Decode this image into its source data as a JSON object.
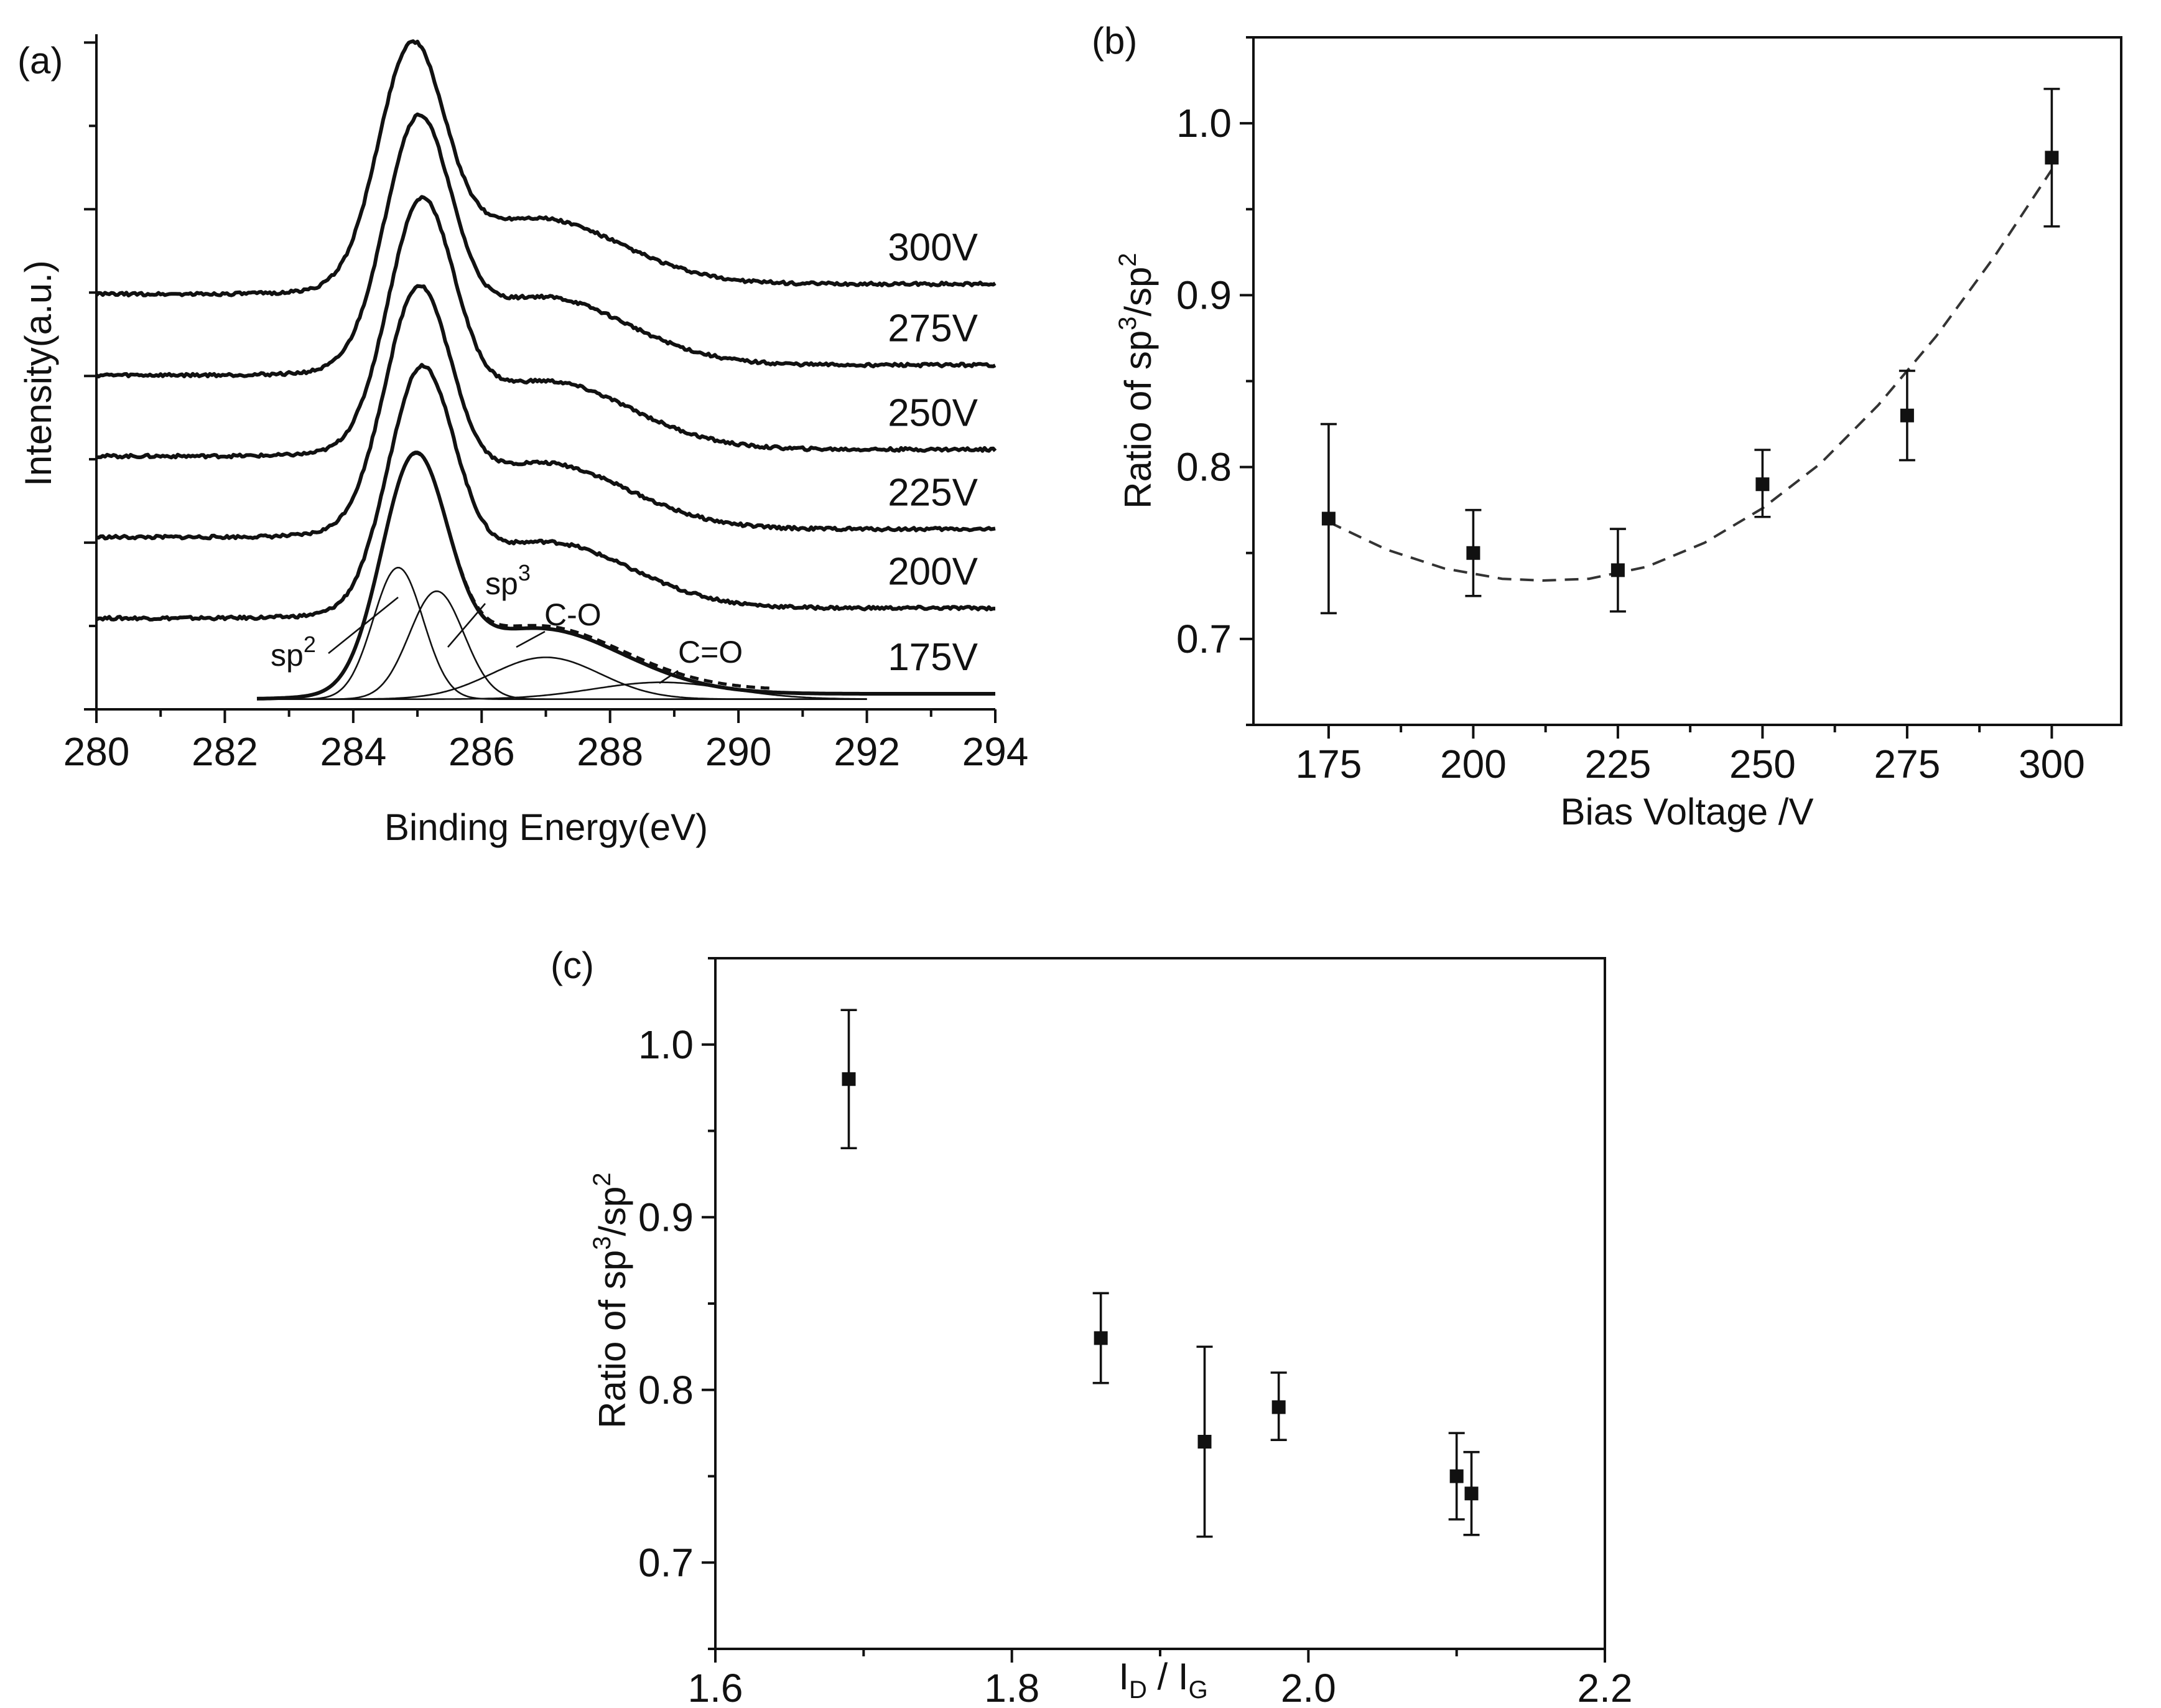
{
  "colors": {
    "ink": "#111111",
    "background": "#ffffff",
    "trend": "#333333"
  },
  "chart_data": [
    {
      "id": "a",
      "type": "line",
      "panel_label": "(a)",
      "xlabel": "Binding Energy(eV)",
      "ylabel": "Intensity(a.u.)",
      "xlim": [
        280,
        294
      ],
      "ylim": [
        0,
        1
      ],
      "xticks": [
        280,
        282,
        284,
        286,
        288,
        290,
        292,
        294
      ],
      "y_tick_labels": false,
      "series": [
        {
          "name": "175V",
          "offset": 0.015,
          "peak_center": 284.95,
          "peak_height": 0.325,
          "tail_level": 0.008,
          "fit_components": true
        },
        {
          "name": "200V",
          "offset": 0.135,
          "peak_center": 285.05,
          "peak_height": 0.33,
          "tail_level": 0.015
        },
        {
          "name": "225V",
          "offset": 0.255,
          "peak_center": 285.0,
          "peak_height": 0.33,
          "tail_level": 0.012
        },
        {
          "name": "250V",
          "offset": 0.375,
          "peak_center": 285.05,
          "peak_height": 0.34,
          "tail_level": 0.01
        },
        {
          "name": "275V",
          "offset": 0.495,
          "peak_center": 285.0,
          "peak_height": 0.34,
          "tail_level": 0.015
        },
        {
          "name": "300V",
          "offset": 0.615,
          "peak_center": 284.9,
          "peak_height": 0.33,
          "tail_level": 0.015
        }
      ],
      "fit_components": [
        {
          "name": "sp2",
          "label_main": "sp",
          "label_sup": "2",
          "center": 284.7,
          "height": 0.195,
          "width": 0.55
        },
        {
          "name": "sp3",
          "label_main": "sp",
          "label_sup": "3",
          "center": 285.3,
          "height": 0.16,
          "width": 0.6
        },
        {
          "name": "C-O",
          "label_main": "C-O",
          "label_sup": "",
          "center": 287.0,
          "height": 0.062,
          "width": 1.2
        },
        {
          "name": "C=O",
          "label_main": "C=O",
          "label_sup": "",
          "center": 288.8,
          "height": 0.025,
          "width": 1.5
        }
      ]
    },
    {
      "id": "b",
      "type": "scatter",
      "panel_label": "(b)",
      "xlabel": "Bias Voltage /V",
      "ylabel_main": "Ratio of sp",
      "ylabel_sup1": "3",
      "ylabel_mid": "/sp",
      "ylabel_sup2": "2",
      "xlim": [
        162,
        312
      ],
      "ylim": [
        0.65,
        1.05
      ],
      "xticks": [
        175,
        200,
        225,
        250,
        275,
        300
      ],
      "yticks": [
        0.7,
        0.8,
        0.9,
        1.0
      ],
      "ytick_labels": [
        "0.7",
        "0.8",
        "0.9",
        "1.0"
      ],
      "x": [
        175,
        200,
        225,
        250,
        275,
        300
      ],
      "y": [
        0.77,
        0.75,
        0.74,
        0.79,
        0.83,
        0.98
      ],
      "err_low": [
        0.715,
        0.725,
        0.716,
        0.771,
        0.804,
        0.94
      ],
      "err_high": [
        0.825,
        0.775,
        0.764,
        0.81,
        0.856,
        1.02
      ],
      "trend_fit": {
        "style": "dashed",
        "x": [
          175,
          185,
          195,
          205,
          212,
          220,
          230,
          240,
          250,
          260,
          270,
          280,
          290,
          300
        ],
        "y": [
          0.768,
          0.752,
          0.741,
          0.735,
          0.734,
          0.735,
          0.742,
          0.756,
          0.776,
          0.802,
          0.836,
          0.876,
          0.922,
          0.973
        ]
      }
    },
    {
      "id": "c",
      "type": "scatter",
      "panel_label": "(c)",
      "xlabel_main": "I",
      "xlabel_sub1": "D",
      "xlabel_mid": " / I",
      "xlabel_sub2": "G",
      "ylabel_main": "Ratio of sp",
      "ylabel_sup1": "3",
      "ylabel_mid": "/sp",
      "ylabel_sup2": "2",
      "xlim": [
        1.6,
        2.2
      ],
      "ylim": [
        0.65,
        1.05
      ],
      "xticks": [
        1.6,
        1.8,
        2.0,
        2.2
      ],
      "xtick_labels": [
        "1.6",
        "1.8",
        "2.0",
        "2.2"
      ],
      "yticks": [
        0.7,
        0.8,
        0.9,
        1.0
      ],
      "ytick_labels": [
        "0.7",
        "0.8",
        "0.9",
        "1.0"
      ],
      "x": [
        1.69,
        1.86,
        1.93,
        1.98,
        2.1,
        2.11
      ],
      "y": [
        0.98,
        0.83,
        0.77,
        0.79,
        0.75,
        0.74
      ],
      "err_low": [
        0.94,
        0.804,
        0.715,
        0.771,
        0.725,
        0.716
      ],
      "err_high": [
        1.02,
        0.856,
        0.825,
        0.81,
        0.775,
        0.764
      ]
    }
  ]
}
